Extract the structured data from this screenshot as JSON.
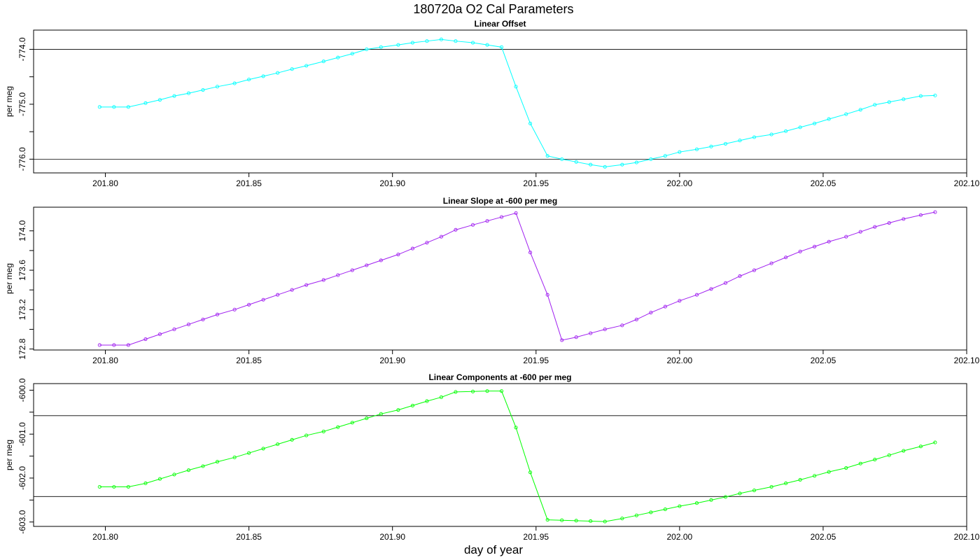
{
  "page_title": "180720a   O2 Cal Parameters",
  "x_axis_label": "day of year",
  "chart_data": [
    {
      "type": "line",
      "title": "Linear Offset",
      "ylabel": "per meg",
      "color": "#00ffff",
      "xlim": [
        201.775,
        202.1
      ],
      "ylim": [
        -776.25,
        -773.65
      ],
      "x_ticks": [
        201.8,
        201.85,
        201.9,
        201.95,
        202.0,
        202.05,
        202.1
      ],
      "x_tick_labels": [
        "201.80",
        "201.85",
        "201.90",
        "201.95",
        "202.00",
        "202.05",
        "202.10"
      ],
      "y_ticks": [
        -774.0,
        -775.0,
        -776.0
      ],
      "y_tick_labels": [
        "-774.0",
        "-775.0",
        "-776.0"
      ],
      "y_minor_ticks": [
        -774.5,
        -775.5
      ],
      "ref_lines": [
        -774.0,
        -776.0
      ],
      "x": [
        201.798,
        201.803,
        201.808,
        201.814,
        201.819,
        201.824,
        201.829,
        201.834,
        201.839,
        201.845,
        201.85,
        201.855,
        201.86,
        201.865,
        201.87,
        201.876,
        201.881,
        201.886,
        201.891,
        201.896,
        201.902,
        201.907,
        201.912,
        201.917,
        201.922,
        201.928,
        201.933,
        201.938,
        201.943,
        201.948,
        201.954,
        201.959,
        201.964,
        201.969,
        201.974,
        201.98,
        201.985,
        201.99,
        201.995,
        202.0,
        202.006,
        202.011,
        202.016,
        202.021,
        202.026,
        202.032,
        202.037,
        202.042,
        202.047,
        202.052,
        202.058,
        202.063,
        202.068,
        202.073,
        202.078,
        202.084,
        202.089
      ],
      "series": [
        {
          "values": [
            -775.05,
            -775.05,
            -775.05,
            -774.98,
            -774.92,
            -774.85,
            -774.8,
            -774.74,
            -774.68,
            -774.62,
            -774.55,
            -774.49,
            -774.43,
            -774.36,
            -774.3,
            -774.22,
            -774.15,
            -774.08,
            -774.0,
            -773.96,
            -773.92,
            -773.88,
            -773.85,
            -773.82,
            -773.85,
            -773.88,
            -773.92,
            -773.96,
            -774.68,
            -775.35,
            -775.94,
            -776.0,
            -776.05,
            -776.1,
            -776.14,
            -776.1,
            -776.06,
            -776.0,
            -775.94,
            -775.87,
            -775.82,
            -775.77,
            -775.72,
            -775.66,
            -775.6,
            -775.55,
            -775.49,
            -775.42,
            -775.35,
            -775.27,
            -775.18,
            -775.1,
            -775.01,
            -774.96,
            -774.91,
            -774.85,
            -774.84
          ]
        }
      ]
    },
    {
      "type": "line",
      "title": "Linear Slope at -600 per meg",
      "ylabel": "per meg",
      "color": "#a020f0",
      "xlim": [
        201.775,
        202.1
      ],
      "ylim": [
        172.79,
        174.24
      ],
      "x_ticks": [
        201.8,
        201.85,
        201.9,
        201.95,
        202.0,
        202.05,
        202.1
      ],
      "x_tick_labels": [
        "201.80",
        "201.85",
        "201.90",
        "201.95",
        "202.00",
        "202.05",
        "202.10"
      ],
      "y_ticks": [
        172.8,
        173.2,
        173.6,
        174.0
      ],
      "y_tick_labels": [
        "172.8",
        "173.2",
        "173.6",
        "174.0"
      ],
      "y_minor_ticks": [
        173.0,
        173.4,
        173.8
      ],
      "ref_lines": [],
      "x": [
        201.798,
        201.803,
        201.808,
        201.814,
        201.819,
        201.824,
        201.829,
        201.834,
        201.839,
        201.845,
        201.85,
        201.855,
        201.86,
        201.865,
        201.87,
        201.876,
        201.881,
        201.886,
        201.891,
        201.896,
        201.902,
        201.907,
        201.912,
        201.917,
        201.922,
        201.928,
        201.933,
        201.938,
        201.943,
        201.948,
        201.954,
        201.959,
        201.964,
        201.969,
        201.974,
        201.98,
        201.985,
        201.99,
        201.995,
        202.0,
        202.006,
        202.011,
        202.016,
        202.021,
        202.026,
        202.032,
        202.037,
        202.042,
        202.047,
        202.052,
        202.058,
        202.063,
        202.068,
        202.073,
        202.078,
        202.084,
        202.089
      ],
      "series": [
        {
          "values": [
            172.84,
            172.84,
            172.84,
            172.9,
            172.95,
            173.0,
            173.05,
            173.1,
            173.15,
            173.2,
            173.25,
            173.3,
            173.35,
            173.4,
            173.45,
            173.5,
            173.55,
            173.6,
            173.65,
            173.7,
            173.76,
            173.82,
            173.88,
            173.94,
            174.01,
            174.06,
            174.1,
            174.14,
            174.18,
            173.78,
            173.35,
            172.89,
            172.92,
            172.96,
            173.0,
            173.04,
            173.1,
            173.17,
            173.23,
            173.29,
            173.35,
            173.41,
            173.47,
            173.54,
            173.6,
            173.67,
            173.73,
            173.79,
            173.84,
            173.89,
            173.94,
            173.99,
            174.04,
            174.08,
            174.12,
            174.16,
            174.19
          ]
        }
      ]
    },
    {
      "type": "line",
      "title": "Linear Components at -600 per meg",
      "ylabel": "per meg",
      "color": "#00ff00",
      "xlim": [
        201.775,
        202.1
      ],
      "ylim": [
        -603.1,
        -599.85
      ],
      "x_ticks": [
        201.8,
        201.85,
        201.9,
        201.95,
        202.0,
        202.05,
        202.1
      ],
      "x_tick_labels": [
        "201.80",
        "201.85",
        "201.90",
        "201.95",
        "202.00",
        "202.05",
        "202.10"
      ],
      "y_ticks": [
        -600.0,
        -601.0,
        -602.0,
        -603.0
      ],
      "y_tick_labels": [
        "-600.0",
        "-601.0",
        "-602.0",
        "-603.0"
      ],
      "y_minor_ticks": [
        -600.5,
        -601.5,
        -602.5
      ],
      "ref_lines": [
        -600.58,
        -602.42
      ],
      "x": [
        201.798,
        201.803,
        201.808,
        201.814,
        201.819,
        201.824,
        201.829,
        201.834,
        201.839,
        201.845,
        201.85,
        201.855,
        201.86,
        201.865,
        201.87,
        201.876,
        201.881,
        201.886,
        201.891,
        201.896,
        201.902,
        201.907,
        201.912,
        201.917,
        201.922,
        201.928,
        201.933,
        201.938,
        201.943,
        201.948,
        201.954,
        201.959,
        201.964,
        201.969,
        201.974,
        201.98,
        201.985,
        201.99,
        201.995,
        202.0,
        202.006,
        202.011,
        202.016,
        202.021,
        202.026,
        202.032,
        202.037,
        202.042,
        202.047,
        202.052,
        202.058,
        202.063,
        202.068,
        202.073,
        202.078,
        202.084,
        202.089
      ],
      "series": [
        {
          "values": [
            -602.2,
            -602.2,
            -602.2,
            -602.12,
            -602.02,
            -601.92,
            -601.82,
            -601.73,
            -601.63,
            -601.53,
            -601.43,
            -601.33,
            -601.23,
            -601.13,
            -601.03,
            -600.94,
            -600.84,
            -600.74,
            -600.64,
            -600.54,
            -600.45,
            -600.35,
            -600.25,
            -600.16,
            -600.04,
            -600.03,
            -600.02,
            -600.02,
            -600.85,
            -601.87,
            -602.95,
            -602.96,
            -602.97,
            -602.98,
            -602.99,
            -602.92,
            -602.85,
            -602.78,
            -602.71,
            -602.64,
            -602.57,
            -602.5,
            -602.43,
            -602.35,
            -602.28,
            -602.2,
            -602.12,
            -602.04,
            -601.95,
            -601.86,
            -601.77,
            -601.67,
            -601.58,
            -601.48,
            -601.38,
            -601.28,
            -601.19
          ]
        }
      ]
    }
  ]
}
